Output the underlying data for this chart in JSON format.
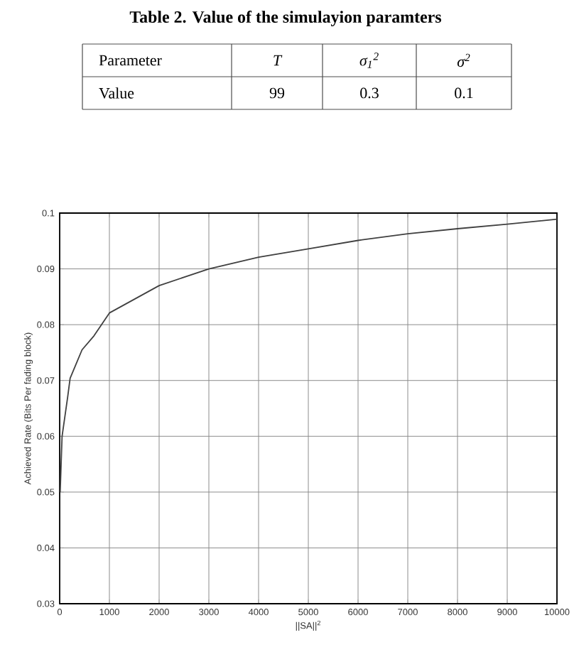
{
  "chart_data": [
    {
      "type": "other",
      "title": "Table 2. Value of the simulayion paramters",
      "annotations": [
        "Parameter",
        "T",
        "σ$_{1}$$^{2}$",
        "σ$^{2}$",
        "Value",
        "99",
        "0.3",
        "0.1"
      ]
    },
    {
      "type": "line",
      "xlabel": "||SA||$^{2}$",
      "ylabel": "Achieved Rate (Bits Per fading block)",
      "x": [
        10,
        48,
        160,
        210,
        450,
        690,
        1000,
        2000,
        3000,
        4000,
        5000,
        6000,
        7000,
        8000,
        9000,
        10000
      ],
      "series": [
        {
          "color": "#404040",
          "values": [
            0.05,
            0.06,
            0.067,
            0.0704,
            0.0755,
            0.078,
            0.0821,
            0.087,
            0.09,
            0.0921,
            0.0936,
            0.0951,
            0.0963,
            0.0972,
            0.098,
            0.0989
          ]
        }
      ],
      "xlim": [
        0,
        10000
      ],
      "ylim": [
        0.03,
        0.1
      ],
      "xticks": [
        0,
        1000,
        2000,
        3000,
        4000,
        5000,
        6000,
        7000,
        8000,
        9000,
        10000
      ],
      "yticks": [
        0.03,
        0.04,
        0.05,
        0.06,
        0.07,
        0.08,
        0.09,
        0.1
      ],
      "grid": true,
      "marker": "none",
      "line_style": "solid"
    }
  ]
}
